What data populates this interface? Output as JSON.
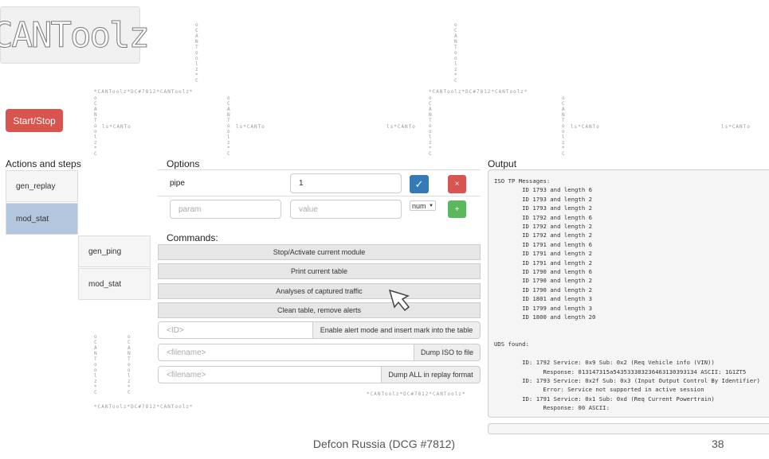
{
  "logo": {
    "text": "CANToolz"
  },
  "background_pattern": {
    "horizontal": "*CANToolz*DC#7812*CANToolz*",
    "vertical": "oCANToolz*C",
    "side": "ls*CANTo"
  },
  "start_stop": {
    "label": "Start/Stop"
  },
  "actions": {
    "title": "Actions and steps",
    "items": [
      {
        "label": "gen_replay"
      },
      {
        "label": "mod_stat"
      }
    ],
    "sub_items": [
      {
        "label": "gen_ping"
      },
      {
        "label": "mod_stat"
      }
    ]
  },
  "options": {
    "title": "Options",
    "row": {
      "name": "pipe",
      "value": "1",
      "ok": "✓",
      "remove": "×"
    },
    "new": {
      "param_placeholder": "param",
      "value_placeholder": "value",
      "type": "num",
      "add": "+"
    }
  },
  "commands": {
    "title": "Commands:",
    "buttons": [
      {
        "label": "Stop/Activate current module"
      },
      {
        "label": "Print current table"
      },
      {
        "label": "Analyses of captured traffic"
      },
      {
        "label": "Clean table, remove alerts"
      }
    ],
    "groups": [
      {
        "placeholder": "<ID>",
        "button": "Enable alert mode and insert mark into the table"
      },
      {
        "placeholder": "<filename>",
        "button": "Dump ISO to file"
      },
      {
        "placeholder": "<filename>",
        "button": "Dump ALL in replay format"
      }
    ]
  },
  "output": {
    "title": "Output",
    "text": "ISO TP Messages:\n        ID 1793 and length 6\n        ID 1793 and length 2\n        ID 1793 and length 2\n        ID 1792 and length 6\n        ID 1792 and length 2\n        ID 1792 and length 2\n        ID 1791 and length 6\n        ID 1791 and length 2\n        ID 1791 and length 2\n        ID 1790 and length 6\n        ID 1790 and length 2\n        ID 1790 and length 2\n        ID 1801 and length 3\n        ID 1799 and length 3\n        ID 1800 and length 20\n\n\nUDS found:\n\n        ID: 1792 Service: 0x9 Sub: 0x2 (Req Vehicle info (VIN))\n              Response: 013147315a543533383236463130393134 ASCII: 1G1ZT5\n        ID: 1793 Service: 0x2f Sub: 0x3 (Input Output Control By Identifier)\n              Error: Service not supported in active session\n        ID: 1791 Service: 0x1 Sub: 0xd (Req Current Powertrain)\n              Response: 00 ASCII:"
  },
  "footer": {
    "caption": "Defcon Russia (DCG #7812)",
    "page": "38"
  },
  "colors": {
    "danger": "#d9534f",
    "primary": "#337ab7",
    "success": "#5cb85c",
    "active": "#b3c6de"
  }
}
